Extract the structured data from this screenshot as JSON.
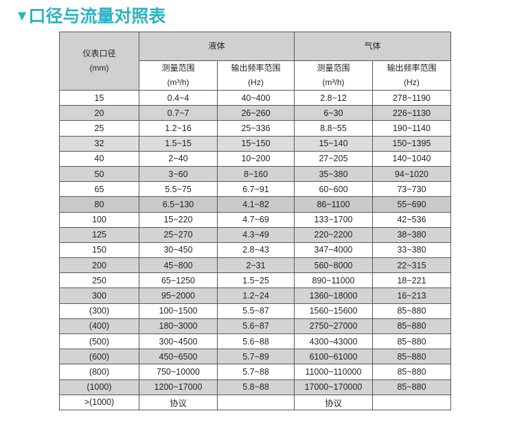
{
  "title": "口径与流量对照表",
  "title_icon": "triangle-down-icon",
  "accent_color": "#2bb3c2",
  "table": {
    "header": {
      "diameter": [
        "仪表口径",
        "(mm)"
      ],
      "liquid": "液体",
      "gas": "气体",
      "sub": [
        [
          "测量范围",
          "(m³/h)"
        ],
        [
          "输出频率范围",
          "(Hz)"
        ],
        [
          "测量范围",
          "(m³/h)"
        ],
        [
          "输出频率范围",
          "(Hz)"
        ]
      ]
    },
    "rows": [
      [
        "15",
        "0.4~4",
        "40~400",
        "2.8~12",
        "278~1190"
      ],
      [
        "20",
        "0.7~7",
        "26~260",
        "6~30",
        "226~1130"
      ],
      [
        "25",
        "1.2~16",
        "25~336",
        "8.8~55",
        "190~1140"
      ],
      [
        "32",
        "1.5~15",
        "15~150",
        "15~140",
        "150~1395"
      ],
      [
        "40",
        "2~40",
        "10~200",
        "27~205",
        "140~1040"
      ],
      [
        "50",
        "3~60",
        "8~160",
        "35~380",
        "94~1020"
      ],
      [
        "65",
        "5.5~75",
        "6.7~91",
        "60~600",
        "73~730"
      ],
      [
        "80",
        "6.5~130",
        "4.1~82",
        "86~1100",
        "55~690"
      ],
      [
        "100",
        "15~220",
        "4.7~69",
        "133~1700",
        "42~536"
      ],
      [
        "125",
        "25~270",
        "4.3~49",
        "220~2200",
        "38~380"
      ],
      [
        "150",
        "30~450",
        "2.8~43",
        "347~4000",
        "33~380"
      ],
      [
        "200",
        "45~800",
        "2~31",
        "560~8000",
        "22~315"
      ],
      [
        "250",
        "65~1250",
        "1.5~25",
        "890~11000",
        "18~221"
      ],
      [
        "300",
        "95~2000",
        "1.2~24",
        "1360~18000",
        "16~213"
      ],
      [
        "(300)",
        "100~1500",
        "5.5~87",
        "1560~15600",
        "85~880"
      ],
      [
        "(400)",
        "180~3000",
        "5.6~87",
        "2750~27000",
        "85~880"
      ],
      [
        "(500)",
        "300~4500",
        "5.6~88",
        "4300~43000",
        "85~880"
      ],
      [
        "(600)",
        "450~6500",
        "5.7~89",
        "6100~61000",
        "85~880"
      ],
      [
        "(800)",
        "750~10000",
        "5.7~88",
        "11000~110000",
        "85~880"
      ],
      [
        "(1000)",
        "1200~17000",
        "5.8~88",
        "17000~170000",
        "85~880"
      ],
      [
        ">(1000)",
        "协议",
        "",
        "协议",
        ""
      ]
    ]
  }
}
